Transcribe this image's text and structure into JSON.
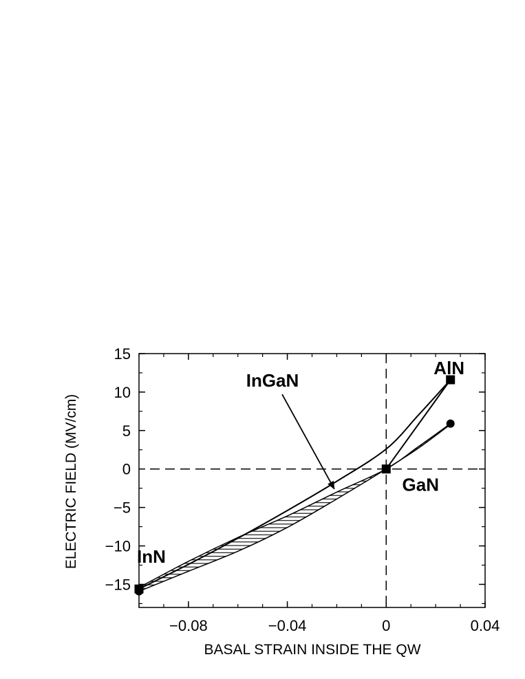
{
  "chart_data": {
    "type": "line",
    "xlabel": "BASAL STRAIN  INSIDE  THE QW",
    "ylabel": "ELECTRIC FIELD (MV/cm)",
    "xlim": [
      -0.1,
      0.04
    ],
    "ylim": [
      -18,
      15
    ],
    "xticks": [
      -0.08,
      -0.04,
      0,
      0.04
    ],
    "xtick_labels": [
      "−0.08",
      "−0.04",
      "0",
      "0.04"
    ],
    "yticks": [
      15,
      10,
      5,
      0,
      -5,
      -10,
      -15
    ],
    "ytick_labels": [
      "15",
      "10",
      "5",
      "0",
      "−5",
      "−10",
      "−15"
    ],
    "grid": false,
    "reference_lines": [
      {
        "orientation": "vertical",
        "value": 0,
        "style": "dashed"
      },
      {
        "orientation": "horizontal",
        "value": 0,
        "style": "dashed"
      }
    ],
    "series": [
      {
        "style": "solid",
        "x": [
          -0.1,
          -0.08,
          -0.06,
          -0.04,
          -0.02,
          0.0,
          0.013,
          0.026
        ],
        "y": [
          -15.6,
          -12.4,
          -9.0,
          -5.4,
          -1.6,
          2.6,
          7.0,
          11.6
        ]
      },
      {
        "style": "solid",
        "x": [
          0.0,
          0.026
        ],
        "y": [
          0.0,
          11.6
        ]
      },
      {
        "style": "hatched band",
        "x": [
          -0.1,
          -0.08,
          -0.06,
          -0.04,
          -0.02,
          0.0,
          0.013,
          0.026
        ],
        "y_upper": [
          -15.4,
          -12.0,
          -8.9,
          -6.1,
          -3.0,
          0.0,
          2.9,
          5.9
        ],
        "y_lower": [
          -15.9,
          -13.3,
          -10.7,
          -7.6,
          -3.9,
          0.0,
          2.7,
          5.8
        ]
      }
    ],
    "markers": [
      {
        "label": "AlN",
        "shape": "square",
        "x": 0.026,
        "y": 11.6
      },
      {
        "label": "GaN",
        "shape": "square",
        "x": 0.0,
        "y": 0.0
      },
      {
        "label": "InN",
        "shape": "square",
        "x": -0.1,
        "y": -15.6
      },
      {
        "label": "",
        "shape": "circle",
        "x": 0.026,
        "y": 5.9
      },
      {
        "label": "",
        "shape": "circle",
        "x": -0.1,
        "y": -15.9
      }
    ],
    "annotations": [
      {
        "text": "AlN",
        "x": 0.026,
        "y": 11.6,
        "anchor": "above"
      },
      {
        "text": "GaN",
        "x": 0.0,
        "y": 0.0,
        "anchor": "below-right"
      },
      {
        "text": "InN",
        "x": -0.1,
        "y": -15.6,
        "anchor": "above"
      },
      {
        "text": "InGaN",
        "x": -0.046,
        "y": 11.5,
        "anchor": "label",
        "arrow_to": [
          -0.021,
          -2.6
        ]
      }
    ]
  }
}
